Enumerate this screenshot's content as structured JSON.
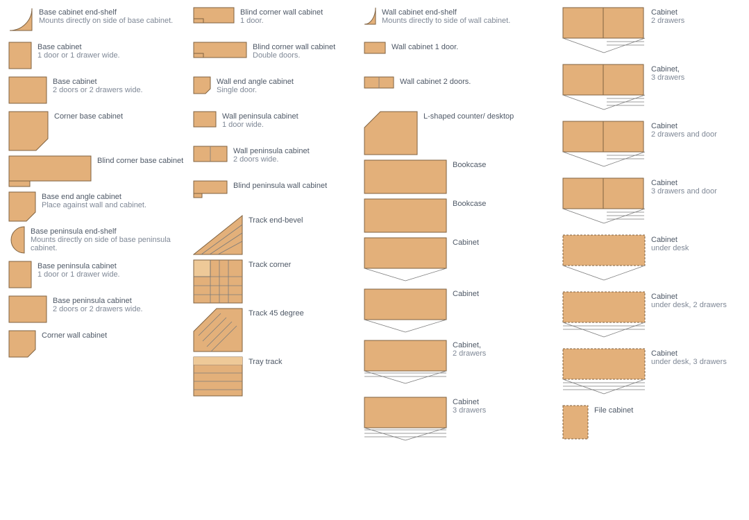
{
  "palette": {
    "fill": "#e3b07a",
    "fill_light": "#eec998",
    "stroke": "#7f6240",
    "text_title": "#4e5866",
    "text_sub": "#7f8896",
    "background": "#ffffff",
    "line": "#7a7a7a"
  },
  "font": {
    "family": "Verdana",
    "size_pt": 8.5
  },
  "columns": [
    {
      "items": [
        {
          "id": "base-end-shelf",
          "sym": "quarter-round",
          "title": "Base cabinet end-shelf",
          "sub": "Mounts directly on side of base cabinet."
        },
        {
          "id": "base-cab-1",
          "sym": "rect-sm",
          "title": "Base cabinet",
          "sub": "1 door or 1 drawer wide."
        },
        {
          "id": "base-cab-2",
          "sym": "rect-md",
          "title": "Base cabinet",
          "sub": "2 doors or 2 drawers wide."
        },
        {
          "id": "corner-base",
          "sym": "corner-notch",
          "title": "Corner base cabinet"
        },
        {
          "id": "blind-corner-base",
          "sym": "step-rect",
          "title": "Blind corner base cabinet"
        },
        {
          "id": "base-end-angle",
          "sym": "pentagon-angle",
          "title": "Base end angle cabinet",
          "sub": "Place against wall and cabinet."
        },
        {
          "id": "base-pen-end-shelf",
          "sym": "half-circle",
          "title": "Base peninsula end-shelf",
          "sub": "Mounts directly on side of base peninsula cabinet."
        },
        {
          "id": "base-pen-1",
          "sym": "rect-sm-pen",
          "title": "Base peninsula cabinet",
          "sub": "1 door or 1 drawer wide."
        },
        {
          "id": "base-pen-2",
          "sym": "rect-md-pen",
          "title": "Base peninsula cabinet",
          "sub": "2 doors or 2 drawers wide."
        },
        {
          "id": "corner-wall",
          "sym": "corner-notch-sm",
          "title": "Corner wall cabinet"
        }
      ]
    },
    {
      "items": [
        {
          "id": "blind-wall-1",
          "sym": "blind-wall-1",
          "title": "Blind corner wall cabinet",
          "sub": "1 door."
        },
        {
          "id": "blind-wall-2",
          "sym": "blind-wall-2",
          "title": "Blind corner wall cabinet",
          "sub": "Double doors."
        },
        {
          "id": "wall-end-angle",
          "sym": "angle-sm",
          "title": "Wall end angle cabinet",
          "sub": "Single door."
        },
        {
          "id": "wall-pen-1",
          "sym": "rect-xs",
          "title": "Wall peninsula cabinet",
          "sub": "1 door wide."
        },
        {
          "id": "wall-pen-2",
          "sym": "rect-sm-2",
          "title": "Wall peninsula cabinet",
          "sub": "2 doors wide."
        },
        {
          "id": "blind-pen-wall",
          "sym": "step-rect-sm",
          "title": "Blind peninsula wall cabinet"
        },
        {
          "id": "track-end-bevel",
          "sym": "track-bevel",
          "title": "Track end-bevel"
        },
        {
          "id": "track-corner",
          "sym": "track-corner",
          "title": "Track corner"
        },
        {
          "id": "track-45",
          "sym": "track-45",
          "title": "Track 45 degree"
        },
        {
          "id": "tray-track",
          "sym": "tray-track",
          "title": "Tray track"
        }
      ]
    },
    {
      "items": [
        {
          "id": "wall-end-shelf",
          "sym": "wall-end-shelf",
          "title": "Wall cabinet end-shelf",
          "sub": "Mounts directly to side of wall cabinet."
        },
        {
          "id": "wall-1door",
          "sym": "rect-tiny",
          "title": "Wall cabinet 1 door."
        },
        {
          "id": "wall-2door",
          "sym": "rect-tiny-2",
          "title": "Wall cabinet 2 doors."
        },
        {
          "id": "l-counter",
          "sym": "l-shape",
          "title": "L-shaped counter/ desktop"
        },
        {
          "id": "bookcase-1",
          "sym": "rect-lg",
          "title": "Bookcase"
        },
        {
          "id": "bookcase-2",
          "sym": "rect-lg",
          "title": "Bookcase"
        },
        {
          "id": "cab-open-1",
          "sym": "rect-lg-open",
          "title": "Cabinet"
        },
        {
          "id": "cab-open-2",
          "sym": "rect-lg-open",
          "title": "Cabinet"
        },
        {
          "id": "cab-2dr",
          "sym": "rect-lg-open-lines",
          "lines": 2,
          "title": "Cabinet,",
          "sub": "2 drawers"
        },
        {
          "id": "cab-3dr",
          "sym": "rect-lg-open-lines",
          "lines": 3,
          "title": "Cabinet",
          "sub": "3 drawers"
        }
      ]
    },
    {
      "items": [
        {
          "id": "c2",
          "sym": "rect-lg-open-sidelines",
          "lines": 2,
          "title": "Cabinet",
          "sub": "2 drawers"
        },
        {
          "id": "c3",
          "sym": "rect-lg-open-sidelines",
          "lines": 3,
          "title": "Cabinet,",
          "sub": "3 drawers"
        },
        {
          "id": "c2d",
          "sym": "rect-lg-open-sidelines",
          "lines": 2,
          "title": "Cabinet",
          "sub": "2 drawers and door"
        },
        {
          "id": "c3d",
          "sym": "rect-lg-open-sidelines",
          "lines": 3,
          "title": "Cabinet",
          "sub": "3 drawers and door"
        },
        {
          "id": "cud",
          "sym": "rect-lg-dashed",
          "lines": 0,
          "title": "Cabinet",
          "sub": "under desk"
        },
        {
          "id": "cud2",
          "sym": "rect-lg-dashed",
          "lines": 2,
          "title": "Cabinet",
          "sub": "under desk, 2 drawers"
        },
        {
          "id": "cud3",
          "sym": "rect-lg-dashed",
          "lines": 3,
          "title": "Cabinet",
          "sub": "under desk, 3 drawers"
        },
        {
          "id": "file",
          "sym": "file-cabinet",
          "title": "File cabinet"
        }
      ]
    }
  ]
}
